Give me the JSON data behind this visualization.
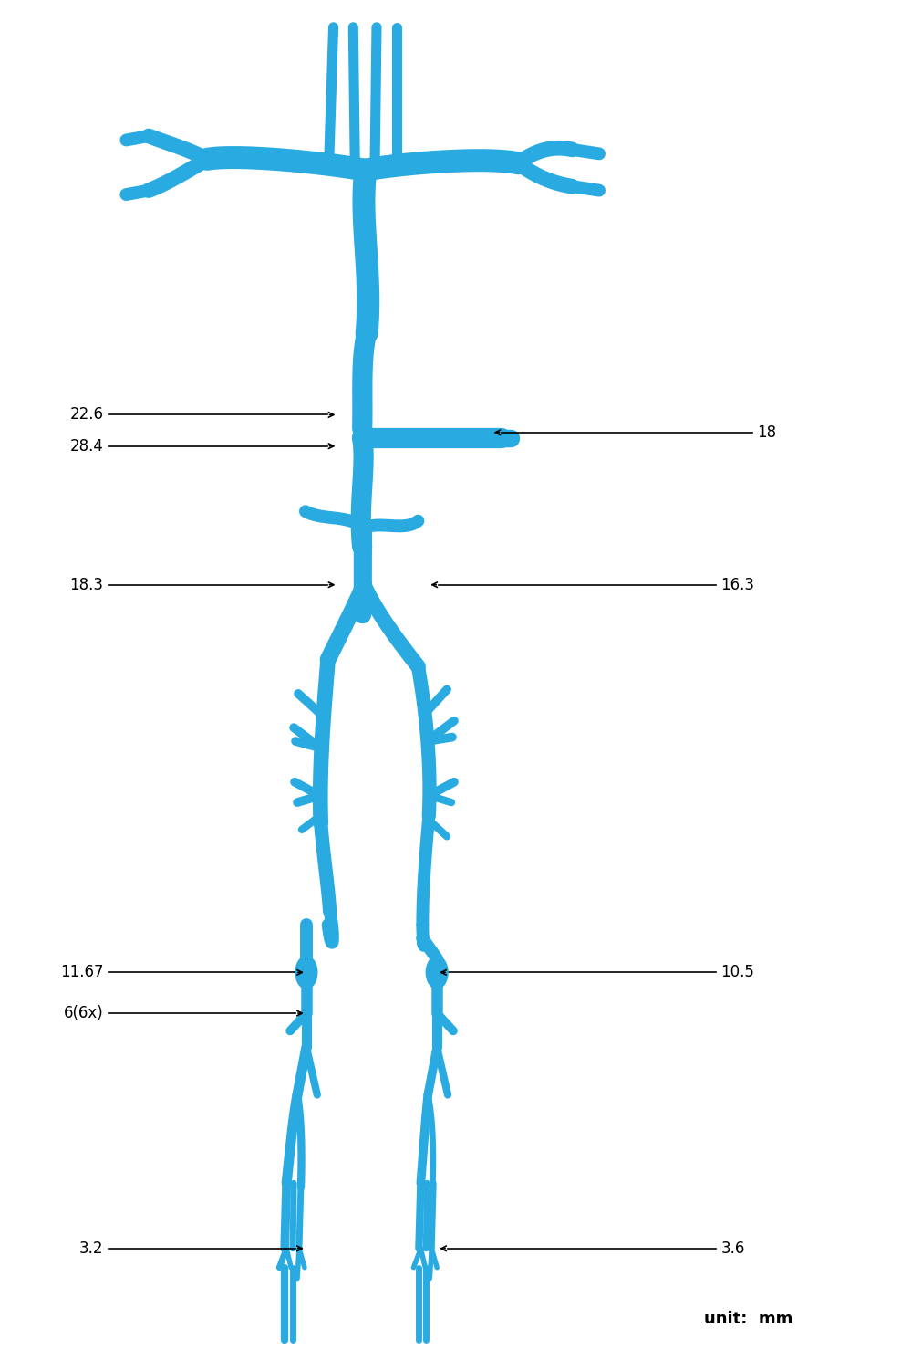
{
  "background_color": "#ffffff",
  "vc": "#29ABE2",
  "text_color": "#000000",
  "unit_text": "unit:  mm",
  "annotations": [
    {
      "label": "22.6",
      "xt": 0.115,
      "yt": 0.695,
      "xa": 0.375,
      "ya": 0.695,
      "dir": "right"
    },
    {
      "label": "28.4",
      "xt": 0.115,
      "yt": 0.672,
      "xa": 0.375,
      "ya": 0.672,
      "dir": "right"
    },
    {
      "label": "18",
      "xt": 0.84,
      "yt": 0.682,
      "xa": 0.545,
      "ya": 0.682,
      "dir": "left"
    },
    {
      "label": "18.3",
      "xt": 0.115,
      "yt": 0.57,
      "xa": 0.375,
      "ya": 0.57,
      "dir": "right"
    },
    {
      "label": "16.3",
      "xt": 0.8,
      "yt": 0.57,
      "xa": 0.475,
      "ya": 0.57,
      "dir": "left"
    },
    {
      "label": "11.67",
      "xt": 0.115,
      "yt": 0.285,
      "xa": 0.34,
      "ya": 0.285,
      "dir": "right"
    },
    {
      "label": "10.5",
      "xt": 0.8,
      "yt": 0.285,
      "xa": 0.485,
      "ya": 0.285,
      "dir": "left"
    },
    {
      "label": "6(6x)",
      "xt": 0.115,
      "yt": 0.255,
      "xa": 0.34,
      "ya": 0.255,
      "dir": "right"
    },
    {
      "label": "3.2",
      "xt": 0.115,
      "yt": 0.082,
      "xa": 0.34,
      "ya": 0.082,
      "dir": "right"
    },
    {
      "label": "3.6",
      "xt": 0.8,
      "yt": 0.082,
      "xa": 0.485,
      "ya": 0.082,
      "dir": "left"
    }
  ],
  "figsize": [
    9.88,
    14.9
  ],
  "dpi": 100
}
